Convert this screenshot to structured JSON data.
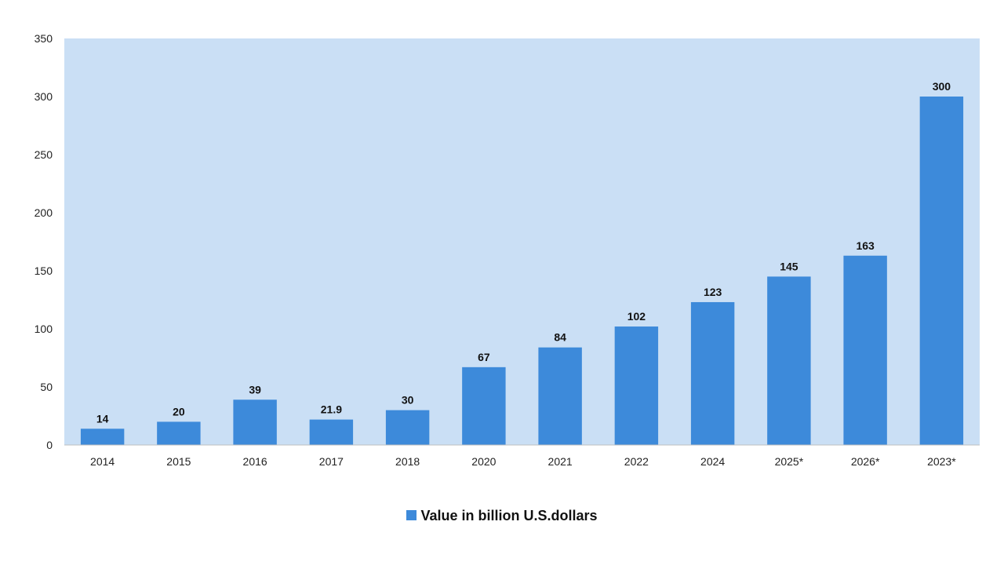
{
  "chart_data": {
    "type": "bar",
    "categories": [
      "2014",
      "2015",
      "2016",
      "2017",
      "2018",
      "2020",
      "2021",
      "2022",
      "2024",
      "2025*",
      "2026*",
      "2023*"
    ],
    "series": [
      {
        "name": "Value in billion U.S.dollars",
        "values": [
          14,
          20,
          39,
          21.9,
          30,
          67,
          84,
          102,
          123,
          145,
          163,
          300
        ],
        "data_labels": [
          "14",
          "20",
          "39",
          "21.9",
          "30",
          "67",
          "84",
          "102",
          "123",
          "145",
          "163",
          "300"
        ]
      }
    ],
    "ylim": [
      0,
      350
    ],
    "yticks": [
      0,
      50,
      100,
      150,
      200,
      250,
      300,
      350
    ],
    "title": "",
    "xlabel": "",
    "ylabel": "",
    "grid": false,
    "legend_position": "bottom-center",
    "colors": {
      "bar": "#3d8ada",
      "plot_background": "#cadff5",
      "text": "#222222"
    }
  }
}
